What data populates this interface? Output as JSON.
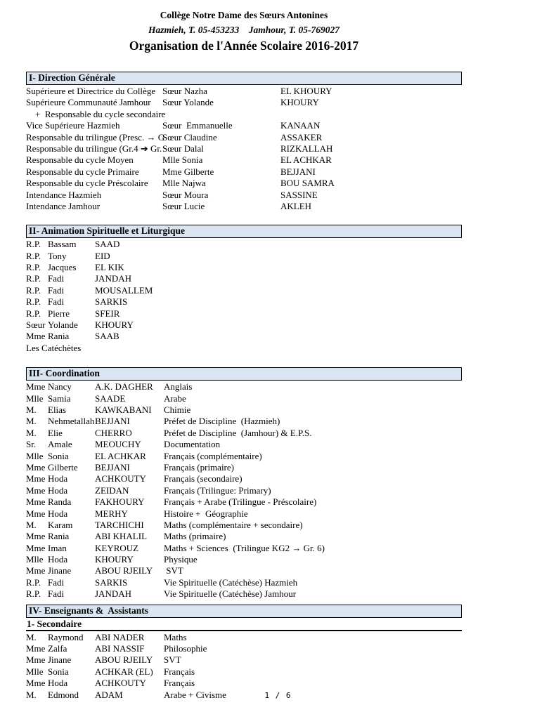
{
  "header": {
    "school_name": "Collège Notre Dame des Sœurs Antonines",
    "contact_line": "Hazmieh, T. 05-453233    Jamhour, T. 05-769027",
    "doc_title": "Organisation de l'Année Scolaire 2016-2017"
  },
  "accent_color": "#dbe5f1",
  "sections": [
    {
      "id": "direction-generale",
      "title": "I- Direction Générale",
      "layout": "role-name-surname",
      "rows": [
        [
          "Supérieure et Directrice du Collège",
          "Sœur Nazha",
          "EL KHOURY"
        ],
        [
          "Supérieure Communauté Jamhour",
          "Sœur Yolande",
          "KHOURY"
        ],
        [
          "    +  Responsable du cycle secondaire",
          "",
          ""
        ],
        [
          "Vice Supérieure Hazmieh",
          "Sœur  Emmanuelle",
          "KANAAN"
        ],
        [
          "Responsable du trilingue (Presc. → G",
          "Sœur Claudine",
          "ASSAKER"
        ],
        [
          "Responsable du trilingue (Gr.4 ➔ Gr.",
          "Sœur Dalal",
          "RIZKALLAH"
        ],
        [
          "Responsable du cycle Moyen",
          "Mlle Sonia",
          "EL ACHKAR"
        ],
        [
          "Responsable du cycle Primaire",
          "Mme Gilberte",
          "BEJJANI"
        ],
        [
          "Responsable du cycle Préscolaire",
          "Mlle Najwa",
          "BOU SAMRA"
        ],
        [
          "Intendance Hazmieh",
          "Sœur Moura",
          "SASSINE"
        ],
        [
          "Intendance Jamhour",
          "Sœur Lucie",
          "AKLEH"
        ]
      ]
    },
    {
      "id": "animation-spirituelle-liturgique",
      "title": "II- Animation Spirituelle et Liturgique",
      "layout": "title-first-last",
      "rows": [
        [
          "R.P.",
          "Bassam",
          "SAAD"
        ],
        [
          "R.P.",
          "Tony",
          "EID"
        ],
        [
          "R.P.",
          "Jacques",
          "EL KIK"
        ],
        [
          "R.P.",
          "Fadi",
          "JANDAH"
        ],
        [
          "R.P.",
          "Fadi",
          "MOUSALLEM"
        ],
        [
          "R.P.",
          "Fadi",
          "SARKIS"
        ],
        [
          "R.P.",
          "Pierre",
          "SFEIR"
        ],
        [
          "Sœur",
          "Yolande",
          "KHOURY"
        ],
        [
          "Mme",
          "Rania",
          "SAAB"
        ],
        [
          "Les Catéchètes",
          "",
          ""
        ]
      ]
    },
    {
      "id": "coordination",
      "title": "III- Coordination",
      "layout": "title-first-last-subject",
      "rows": [
        [
          "Mme",
          "Nancy",
          "A.K. DAGHER",
          "Anglais"
        ],
        [
          "Mlle",
          "Samia",
          "SAADE",
          "Arabe"
        ],
        [
          "M.",
          "Elias",
          "KAWKABANI",
          "Chimie"
        ],
        [
          "M.",
          "Nehmetallah",
          "BEJJANI",
          "Préfet de Discipline  (Hazmieh)"
        ],
        [
          "M.",
          "Elie",
          "CHERRO",
          "Préfet de Discipline  (Jamhour) & E.P.S."
        ],
        [
          "Sr.",
          "Amale",
          "MEOUCHY",
          "Documentation"
        ],
        [
          "Mlle",
          "Sonia",
          "EL ACHKAR",
          "Français (complémentaire)"
        ],
        [
          "Mme",
          "Gilberte",
          "BEJJANI",
          "Français (primaire)"
        ],
        [
          "Mme",
          "Hoda",
          "ACHKOUTY",
          "Français (secondaire)"
        ],
        [
          "Mme",
          "Hoda",
          "ZEIDAN",
          "Français (Trilingue: Primary)"
        ],
        [
          "Mme",
          "Randa",
          "FAKHOURY",
          "Français + Arabe (Trilingue - Préscolaire)"
        ],
        [
          "Mme",
          "Hoda",
          "MERHY",
          "Histoire +  Géographie"
        ],
        [
          "M.",
          "Karam",
          "TARCHICHI",
          "Maths (complémentaire + secondaire)"
        ],
        [
          "Mme",
          "Rania",
          "ABI KHALIL",
          "Maths (primaire)"
        ],
        [
          "Mme",
          "Iman",
          "KEYROUZ",
          "Maths + Sciences  (Trilingue KG2 → Gr. 6)"
        ],
        [
          "Mlle",
          "Hoda",
          "KHOURY",
          "Physique"
        ],
        [
          "Mme",
          "Jinane",
          "ABOU RJEILY",
          " SVT"
        ],
        [
          "R.P.",
          "Fadi",
          "SARKIS",
          "Vie Spirituelle (Catéchèse) Hazmieh"
        ],
        [
          "R.P.",
          "Fadi",
          "JANDAH",
          "Vie Spirituelle (Catéchèse) Jamhour"
        ]
      ]
    },
    {
      "id": "enseignants-assistants",
      "title": "IV- Enseignants &  Assistants",
      "subsection": "1- Secondaire",
      "layout": "title-first-last-subject",
      "rows": [
        [
          "M.",
          "Raymond",
          "ABI NADER",
          "Maths"
        ],
        [
          "Mme",
          "Zalfa",
          "ABI NASSIF",
          "Philosophie"
        ],
        [
          "Mme",
          "Jinane",
          "ABOU RJEILY",
          "SVT"
        ],
        [
          "Mlle",
          "Sonia",
          "ACHKAR (EL)",
          "Français"
        ],
        [
          "Mme",
          "Hoda",
          "ACHKOUTY",
          "Français"
        ],
        [
          "M.",
          "Edmond",
          "ADAM",
          "Arabe + Civisme"
        ]
      ]
    }
  ],
  "footer": {
    "page_number": "1 / 6"
  }
}
